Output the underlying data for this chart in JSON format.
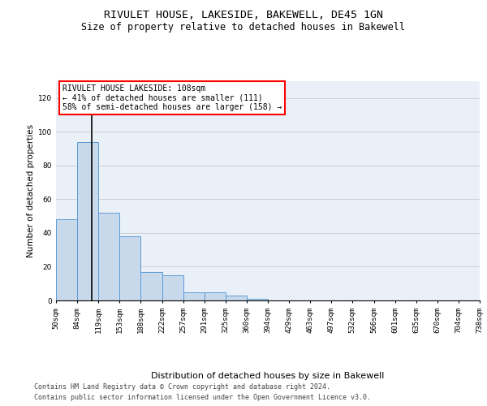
{
  "title1": "RIVULET HOUSE, LAKESIDE, BAKEWELL, DE45 1GN",
  "title2": "Size of property relative to detached houses in Bakewell",
  "xlabel": "Distribution of detached houses by size in Bakewell",
  "ylabel": "Number of detached properties",
  "bins": [
    "50sqm",
    "84sqm",
    "119sqm",
    "153sqm",
    "188sqm",
    "222sqm",
    "257sqm",
    "291sqm",
    "325sqm",
    "360sqm",
    "394sqm",
    "429sqm",
    "463sqm",
    "497sqm",
    "532sqm",
    "566sqm",
    "601sqm",
    "635sqm",
    "670sqm",
    "704sqm",
    "738sqm"
  ],
  "bar_heights": [
    48,
    94,
    52,
    38,
    17,
    15,
    5,
    5,
    3,
    1,
    0,
    0,
    0,
    0,
    0,
    0,
    0,
    0,
    0,
    0
  ],
  "bar_color": "#c8d9ec",
  "bar_edge_color": "#5b9bd5",
  "annotation_text": "RIVULET HOUSE LAKESIDE: 108sqm\n← 41% of detached houses are smaller (111)\n58% of semi-detached houses are larger (158) →",
  "annotation_box_color": "white",
  "annotation_box_edge_color": "red",
  "vline_color": "black",
  "ylim": [
    0,
    130
  ],
  "yticks": [
    0,
    20,
    40,
    60,
    80,
    100,
    120
  ],
  "plot_background": "#eaf0f8",
  "footer1": "Contains HM Land Registry data © Crown copyright and database right 2024.",
  "footer2": "Contains public sector information licensed under the Open Government Licence v3.0.",
  "title1_fontsize": 9.5,
  "title2_fontsize": 8.5,
  "xlabel_fontsize": 8,
  "ylabel_fontsize": 7.5,
  "tick_fontsize": 6.5,
  "annotation_fontsize": 7,
  "footer_fontsize": 6
}
